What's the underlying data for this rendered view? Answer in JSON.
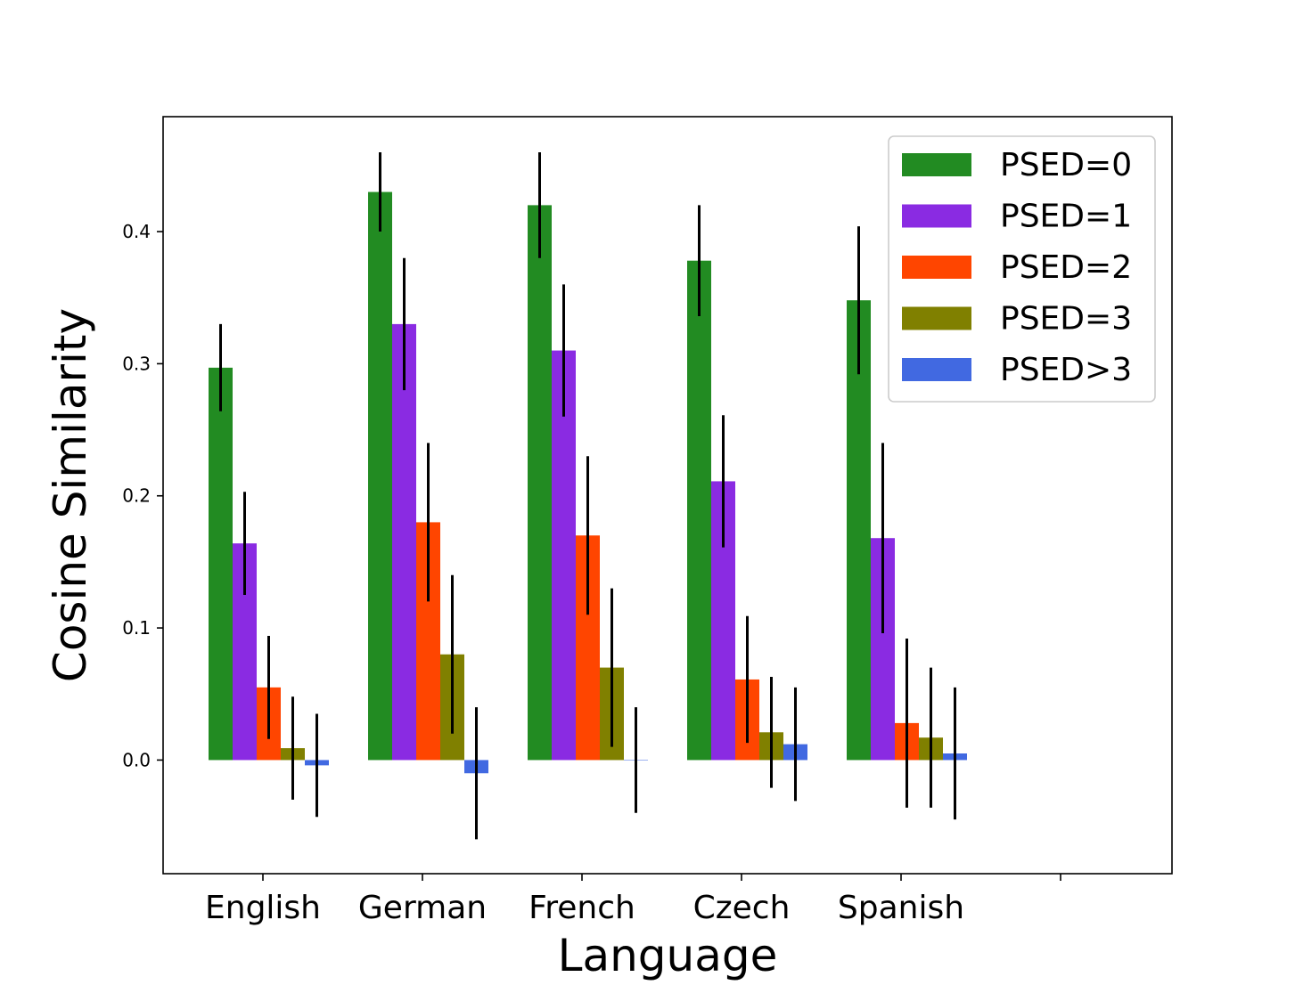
{
  "chart_data": {
    "type": "bar",
    "title": "",
    "xlabel": "Language",
    "ylabel": "Cosine Similarity",
    "categories": [
      "English",
      "German",
      "French",
      "Czech",
      "Spanish"
    ],
    "ylim": [
      -0.086,
      0.487
    ],
    "yticks": [
      "0.0",
      "0.1",
      "0.2",
      "0.3",
      "0.4"
    ],
    "grid": false,
    "legend_position": "top-right",
    "error_bars": true,
    "series": [
      {
        "name": "PSED=0",
        "color": "#228b22",
        "values": [
          0.297,
          0.43,
          0.42,
          0.378,
          0.348
        ],
        "errors": [
          0.033,
          0.03,
          0.04,
          0.042,
          0.056
        ]
      },
      {
        "name": "PSED=1",
        "color": "#8a2be2",
        "values": [
          0.164,
          0.33,
          0.31,
          0.211,
          0.168
        ],
        "errors": [
          0.039,
          0.05,
          0.05,
          0.05,
          0.072
        ]
      },
      {
        "name": "PSED=2",
        "color": "#ff4500",
        "values": [
          0.055,
          0.18,
          0.17,
          0.061,
          0.028
        ],
        "errors": [
          0.039,
          0.06,
          0.06,
          0.048,
          0.064
        ]
      },
      {
        "name": "PSED=3",
        "color": "#808000",
        "values": [
          0.009,
          0.08,
          0.07,
          0.021,
          0.017
        ],
        "errors": [
          0.039,
          0.06,
          0.06,
          0.042,
          0.053
        ]
      },
      {
        "name": "PSED>3",
        "color": "#4169e1",
        "values": [
          -0.004,
          -0.01,
          0.0,
          0.012,
          0.005
        ],
        "errors": [
          0.039,
          0.05,
          0.04,
          0.043,
          0.05
        ]
      }
    ]
  }
}
